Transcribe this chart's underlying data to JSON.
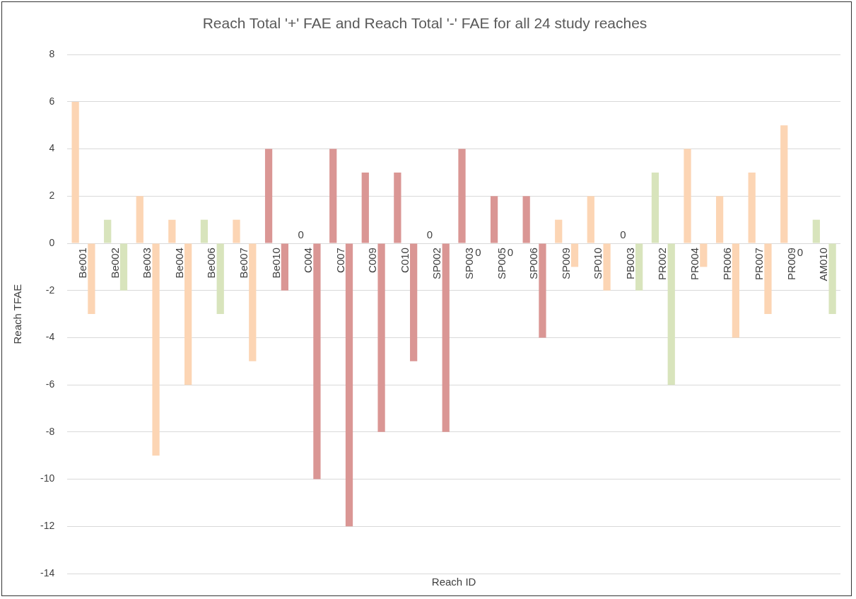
{
  "chart_data": {
    "type": "bar",
    "title": "Reach Total '+' FAE and Reach Total '-' FAE for all 24 study reaches",
    "xlabel": "Reach ID",
    "ylabel": "Reach TFAE",
    "categories": [
      "Be001",
      "Be002",
      "Be003",
      "Be004",
      "Be006",
      "Be007",
      "Be010",
      "C004",
      "C007",
      "C009",
      "C010",
      "SP002",
      "SP003",
      "SP005",
      "SP006",
      "SP009",
      "SP010",
      "PB003",
      "PR002",
      "PR004",
      "PR006",
      "PR007",
      "PR009",
      "AM010"
    ],
    "series": [
      {
        "colors": [
          "#fcd5b4",
          "#d8e4bc",
          "#fcd5b4",
          "#fcd5b4",
          "#d8e4bc",
          "#fcd5b4",
          "#da9694",
          "#da9694",
          "#da9694",
          "#da9694",
          "#da9694",
          "#da9694",
          "#da9694",
          "#da9694",
          "#da9694",
          "#fcd5b4",
          "#fcd5b4",
          "#d8e4bc",
          "#d8e4bc",
          "#fcd5b4",
          "#fcd5b4",
          "#fcd5b4",
          "#fcd5b4",
          "#d8e4bc"
        ],
        "values": [
          6,
          1,
          2,
          1,
          1,
          1,
          4,
          0,
          4,
          3,
          3,
          0,
          4,
          2,
          2,
          1,
          2,
          0,
          3,
          4,
          2,
          3,
          5,
          1
        ],
        "value_labels": [
          null,
          null,
          null,
          null,
          null,
          null,
          null,
          "0",
          null,
          null,
          null,
          "0",
          null,
          null,
          null,
          null,
          null,
          "0",
          null,
          null,
          null,
          null,
          null,
          null
        ]
      },
      {
        "colors": [
          "#fcd5b4",
          "#d8e4bc",
          "#fcd5b4",
          "#fcd5b4",
          "#d8e4bc",
          "#fcd5b4",
          "#da9694",
          "#da9694",
          "#da9694",
          "#da9694",
          "#da9694",
          "#da9694",
          "#da9694",
          "#da9694",
          "#da9694",
          "#fcd5b4",
          "#fcd5b4",
          "#d8e4bc",
          "#d8e4bc",
          "#fcd5b4",
          "#fcd5b4",
          "#fcd5b4",
          "#fcd5b4",
          "#d8e4bc"
        ],
        "values": [
          -3,
          -2,
          -9,
          -6,
          -3,
          -5,
          -2,
          -10,
          -12,
          -8,
          -5,
          -8,
          0,
          0,
          -4,
          -1,
          -2,
          -2,
          -6,
          -1,
          -4,
          -3,
          0,
          -3
        ],
        "value_labels": [
          null,
          null,
          null,
          null,
          null,
          null,
          null,
          null,
          null,
          null,
          null,
          null,
          "0",
          "0",
          null,
          null,
          null,
          null,
          null,
          null,
          null,
          null,
          "0",
          null
        ]
      }
    ],
    "ylim": [
      -14,
      8
    ],
    "yticks": [
      -14,
      -12,
      -10,
      -8,
      -6,
      -4,
      -2,
      0,
      2,
      4,
      6,
      8
    ],
    "grid": "y",
    "legend": false
  }
}
